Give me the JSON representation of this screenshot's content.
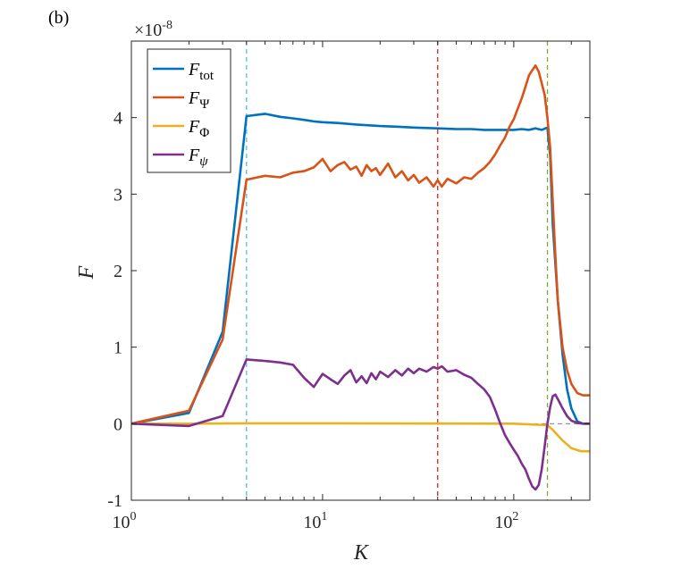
{
  "panel_label": "(b)",
  "chart_data": {
    "type": "line",
    "xscale": "log",
    "xlim": [
      1,
      250
    ],
    "ylim": [
      -1,
      5
    ],
    "xlabel": "K",
    "ylabel": "F",
    "y_multiplier_text": "×10",
    "y_multiplier_exponent": "-8",
    "x_ticks": [
      {
        "value": 1,
        "base": "10",
        "exp": "0"
      },
      {
        "value": 10,
        "base": "10",
        "exp": "1"
      },
      {
        "value": 100,
        "base": "10",
        "exp": "2"
      }
    ],
    "y_ticks": [
      {
        "value": -1,
        "label": "-1"
      },
      {
        "value": 0,
        "label": "0"
      },
      {
        "value": 1,
        "label": "1"
      },
      {
        "value": 2,
        "label": "2"
      },
      {
        "value": 3,
        "label": "3"
      },
      {
        "value": 4,
        "label": "4"
      }
    ],
    "legend_position": "top-left",
    "vertical_lines": [
      {
        "x": 4,
        "color": "#4DBEEE"
      },
      {
        "x": 40,
        "color": "#E02020"
      },
      {
        "x": 150,
        "color": "#77AC30"
      }
    ],
    "zero_line": {
      "y": 0,
      "color": "#808080"
    },
    "series": [
      {
        "name": "F_tot",
        "label_main": "F",
        "label_sub": "tot",
        "color": "#0072BD",
        "points": [
          [
            1,
            0
          ],
          [
            2,
            0.14
          ],
          [
            3,
            1.2
          ],
          [
            4,
            4.02
          ],
          [
            5,
            4.05
          ],
          [
            6,
            4.01
          ],
          [
            7,
            3.99
          ],
          [
            8,
            3.97
          ],
          [
            9,
            3.95
          ],
          [
            10,
            3.94
          ],
          [
            12,
            3.93
          ],
          [
            15,
            3.91
          ],
          [
            20,
            3.89
          ],
          [
            25,
            3.88
          ],
          [
            30,
            3.87
          ],
          [
            40,
            3.86
          ],
          [
            50,
            3.85
          ],
          [
            60,
            3.85
          ],
          [
            70,
            3.84
          ],
          [
            80,
            3.84
          ],
          [
            90,
            3.84
          ],
          [
            100,
            3.84
          ],
          [
            110,
            3.85
          ],
          [
            120,
            3.84
          ],
          [
            130,
            3.86
          ],
          [
            140,
            3.84
          ],
          [
            150,
            3.87
          ],
          [
            155,
            3.5
          ],
          [
            160,
            2.6
          ],
          [
            170,
            1.6
          ],
          [
            180,
            0.9
          ],
          [
            190,
            0.45
          ],
          [
            200,
            0.2
          ],
          [
            215,
            0.03
          ],
          [
            230,
            0
          ],
          [
            250,
            0
          ]
        ]
      },
      {
        "name": "F_Psi",
        "label_main": "F",
        "label_sub": "Ψ",
        "color": "#D95319",
        "points": [
          [
            1,
            0
          ],
          [
            2,
            0.17
          ],
          [
            3,
            1.1
          ],
          [
            4,
            3.19
          ],
          [
            5,
            3.24
          ],
          [
            6,
            3.22
          ],
          [
            7,
            3.28
          ],
          [
            8,
            3.3
          ],
          [
            9,
            3.35
          ],
          [
            10,
            3.46
          ],
          [
            11,
            3.3
          ],
          [
            12,
            3.38
          ],
          [
            13,
            3.42
          ],
          [
            14,
            3.32
          ],
          [
            15,
            3.36
          ],
          [
            16,
            3.24
          ],
          [
            17,
            3.38
          ],
          [
            18,
            3.3
          ],
          [
            19,
            3.34
          ],
          [
            20,
            3.25
          ],
          [
            22,
            3.4
          ],
          [
            24,
            3.22
          ],
          [
            26,
            3.3
          ],
          [
            28,
            3.18
          ],
          [
            30,
            3.25
          ],
          [
            32,
            3.15
          ],
          [
            35,
            3.22
          ],
          [
            38,
            3.1
          ],
          [
            40,
            3.18
          ],
          [
            42,
            3.1
          ],
          [
            45,
            3.2
          ],
          [
            50,
            3.14
          ],
          [
            55,
            3.22
          ],
          [
            60,
            3.2
          ],
          [
            65,
            3.28
          ],
          [
            70,
            3.34
          ],
          [
            75,
            3.42
          ],
          [
            80,
            3.52
          ],
          [
            85,
            3.64
          ],
          [
            90,
            3.74
          ],
          [
            95,
            3.88
          ],
          [
            100,
            3.98
          ],
          [
            105,
            4.12
          ],
          [
            110,
            4.25
          ],
          [
            115,
            4.4
          ],
          [
            120,
            4.55
          ],
          [
            125,
            4.62
          ],
          [
            130,
            4.68
          ],
          [
            135,
            4.6
          ],
          [
            140,
            4.45
          ],
          [
            145,
            4.3
          ],
          [
            150,
            4.0
          ],
          [
            155,
            3.6
          ],
          [
            160,
            2.9
          ],
          [
            165,
            2.2
          ],
          [
            170,
            1.6
          ],
          [
            180,
            1.0
          ],
          [
            190,
            0.7
          ],
          [
            200,
            0.52
          ],
          [
            215,
            0.4
          ],
          [
            230,
            0.37
          ],
          [
            250,
            0.37
          ]
        ]
      },
      {
        "name": "F_Phi",
        "label_main": "F",
        "label_sub": "Φ",
        "color": "#EDB120",
        "points": [
          [
            1,
            0
          ],
          [
            2,
            0
          ],
          [
            4,
            0.005
          ],
          [
            10,
            0.005
          ],
          [
            40,
            0.002
          ],
          [
            100,
            0.0
          ],
          [
            150,
            -0.02
          ],
          [
            160,
            -0.08
          ],
          [
            180,
            -0.22
          ],
          [
            200,
            -0.32
          ],
          [
            225,
            -0.36
          ],
          [
            250,
            -0.36
          ]
        ]
      },
      {
        "name": "F_psi",
        "label_main": "F",
        "label_sub": "ψ",
        "color": "#7E2F8E",
        "points": [
          [
            1,
            0
          ],
          [
            2,
            -0.03
          ],
          [
            3,
            0.1
          ],
          [
            4,
            0.84
          ],
          [
            5,
            0.82
          ],
          [
            6,
            0.8
          ],
          [
            7,
            0.77
          ],
          [
            8,
            0.6
          ],
          [
            9,
            0.48
          ],
          [
            10,
            0.65
          ],
          [
            11,
            0.58
          ],
          [
            12,
            0.52
          ],
          [
            13,
            0.63
          ],
          [
            14,
            0.7
          ],
          [
            15,
            0.54
          ],
          [
            16,
            0.62
          ],
          [
            17,
            0.53
          ],
          [
            18,
            0.66
          ],
          [
            19,
            0.58
          ],
          [
            20,
            0.68
          ],
          [
            22,
            0.61
          ],
          [
            24,
            0.7
          ],
          [
            26,
            0.63
          ],
          [
            28,
            0.72
          ],
          [
            30,
            0.66
          ],
          [
            32,
            0.72
          ],
          [
            35,
            0.68
          ],
          [
            38,
            0.74
          ],
          [
            40,
            0.72
          ],
          [
            42,
            0.75
          ],
          [
            45,
            0.68
          ],
          [
            50,
            0.7
          ],
          [
            55,
            0.64
          ],
          [
            60,
            0.6
          ],
          [
            65,
            0.52
          ],
          [
            70,
            0.45
          ],
          [
            75,
            0.35
          ],
          [
            80,
            0.18
          ],
          [
            85,
            0.0
          ],
          [
            90,
            -0.15
          ],
          [
            95,
            -0.25
          ],
          [
            100,
            -0.34
          ],
          [
            105,
            -0.42
          ],
          [
            110,
            -0.52
          ],
          [
            115,
            -0.6
          ],
          [
            120,
            -0.72
          ],
          [
            125,
            -0.82
          ],
          [
            130,
            -0.86
          ],
          [
            135,
            -0.8
          ],
          [
            140,
            -0.6
          ],
          [
            145,
            -0.3
          ],
          [
            150,
            0.0
          ],
          [
            155,
            0.22
          ],
          [
            160,
            0.36
          ],
          [
            165,
            0.38
          ],
          [
            170,
            0.32
          ],
          [
            180,
            0.2
          ],
          [
            190,
            0.1
          ],
          [
            200,
            0.04
          ],
          [
            215,
            0.01
          ],
          [
            230,
            0
          ],
          [
            250,
            0
          ]
        ]
      }
    ]
  }
}
